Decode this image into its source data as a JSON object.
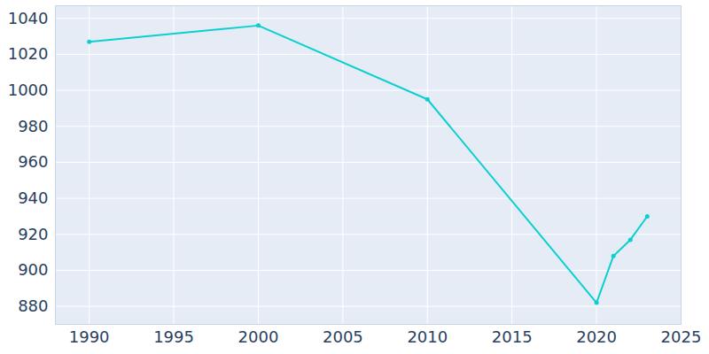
{
  "chart_data": {
    "type": "line",
    "x": [
      1990,
      2000,
      2010,
      2020,
      2021,
      2022,
      2023
    ],
    "values": [
      1027,
      1036,
      995,
      882,
      908,
      917,
      930
    ],
    "color": "#0ccfcf",
    "marker": "circle",
    "xlim": [
      1988,
      2025
    ],
    "xticks": [
      1990,
      1995,
      2000,
      2005,
      2010,
      2015,
      2020,
      2025
    ],
    "ylim": [
      870,
      1047
    ],
    "yticks": [
      880,
      900,
      920,
      940,
      960,
      980,
      1000,
      1020,
      1040
    ],
    "grid": true
  }
}
